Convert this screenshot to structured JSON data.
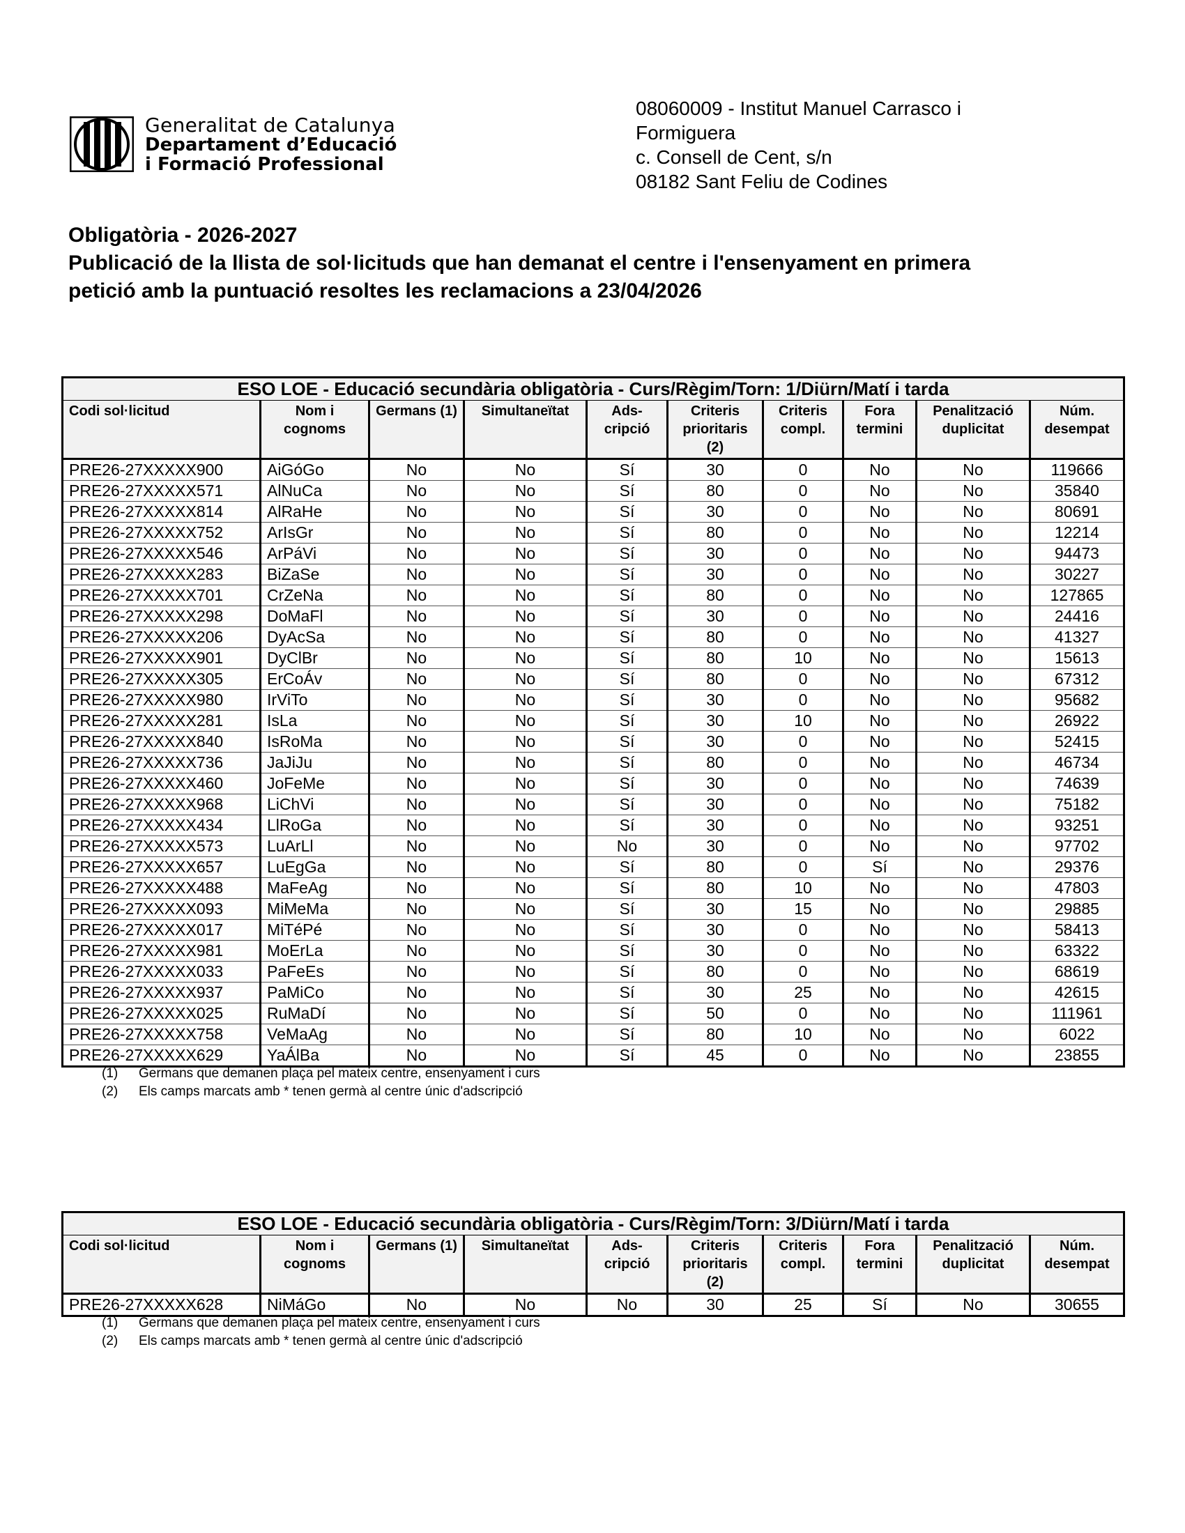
{
  "logo": {
    "line1": "Generalitat de Catalunya",
    "line2": "Departament d’Educació",
    "line3": "i Formació Professional"
  },
  "address": {
    "line1": "08060009 - Institut Manuel Carrasco i",
    "line2": "Formiguera",
    "line3": "c. Consell de Cent, s/n",
    "line4": "08182 Sant Feliu de Codines"
  },
  "title": {
    "line1": "Obligatòria - 2026-2027",
    "line2": "Publicació de la llista de sol·licituds que han demanat el centre i l'ensenyament en primera",
    "line3": "petició amb la puntuació resoltes les reclamacions a 23/04/2026"
  },
  "columns": [
    "Codi sol·licitud",
    "Nom i cognoms",
    "Germans (1)",
    "Simultaneïtat",
    "Ads-cripció",
    "Criteris prioritaris (2)",
    "Criteris compl.",
    "Fora termini",
    "Penalització duplicitat",
    "Núm. desempat"
  ],
  "footnotes": [
    {
      "num": "(1)",
      "text": "Germans que demanen plaça pel mateix centre, ensenyament i curs"
    },
    {
      "num": "(2)",
      "text": "Els camps marcats amb * tenen germà al centre únic d'adscripció"
    }
  ],
  "tables": [
    {
      "caption": "ESO LOE - Educació secundària obligatòria    -  Curs/Règim/Torn:  1/Diürn/Matí i tarda",
      "rows": [
        [
          "PRE26-27XXXXX900",
          "AiGóGo",
          "No",
          "No",
          "Sí",
          "30",
          "0",
          "No",
          "No",
          "119666"
        ],
        [
          "PRE26-27XXXXX571",
          "AlNuCa",
          "No",
          "No",
          "Sí",
          "80",
          "0",
          "No",
          "No",
          "35840"
        ],
        [
          "PRE26-27XXXXX814",
          "AlRaHe",
          "No",
          "No",
          "Sí",
          "30",
          "0",
          "No",
          "No",
          "80691"
        ],
        [
          "PRE26-27XXXXX752",
          "ArIsGr",
          "No",
          "No",
          "Sí",
          "80",
          "0",
          "No",
          "No",
          "12214"
        ],
        [
          "PRE26-27XXXXX546",
          "ArPáVi",
          "No",
          "No",
          "Sí",
          "30",
          "0",
          "No",
          "No",
          "94473"
        ],
        [
          "PRE26-27XXXXX283",
          "BiZaSe",
          "No",
          "No",
          "Sí",
          "30",
          "0",
          "No",
          "No",
          "30227"
        ],
        [
          "PRE26-27XXXXX701",
          "CrZeNa",
          "No",
          "No",
          "Sí",
          "80",
          "0",
          "No",
          "No",
          "127865"
        ],
        [
          "PRE26-27XXXXX298",
          "DoMaFl",
          "No",
          "No",
          "Sí",
          "30",
          "0",
          "No",
          "No",
          "24416"
        ],
        [
          "PRE26-27XXXXX206",
          "DyAcSa",
          "No",
          "No",
          "Sí",
          "80",
          "0",
          "No",
          "No",
          "41327"
        ],
        [
          "PRE26-27XXXXX901",
          "DyClBr",
          "No",
          "No",
          "Sí",
          "80",
          "10",
          "No",
          "No",
          "15613"
        ],
        [
          "PRE26-27XXXXX305",
          "ErCoÁv",
          "No",
          "No",
          "Sí",
          "80",
          "0",
          "No",
          "No",
          "67312"
        ],
        [
          "PRE26-27XXXXX980",
          "IrViTo",
          "No",
          "No",
          "Sí",
          "30",
          "0",
          "No",
          "No",
          "95682"
        ],
        [
          "PRE26-27XXXXX281",
          "IsLa",
          "No",
          "No",
          "Sí",
          "30",
          "10",
          "No",
          "No",
          "26922"
        ],
        [
          "PRE26-27XXXXX840",
          "IsRoMa",
          "No",
          "No",
          "Sí",
          "30",
          "0",
          "No",
          "No",
          "52415"
        ],
        [
          "PRE26-27XXXXX736",
          "JaJiJu",
          "No",
          "No",
          "Sí",
          "80",
          "0",
          "No",
          "No",
          "46734"
        ],
        [
          "PRE26-27XXXXX460",
          "JoFeMe",
          "No",
          "No",
          "Sí",
          "30",
          "0",
          "No",
          "No",
          "74639"
        ],
        [
          "PRE26-27XXXXX968",
          "LiChVi",
          "No",
          "No",
          "Sí",
          "30",
          "0",
          "No",
          "No",
          "75182"
        ],
        [
          "PRE26-27XXXXX434",
          "LlRoGa",
          "No",
          "No",
          "Sí",
          "30",
          "0",
          "No",
          "No",
          "93251"
        ],
        [
          "PRE26-27XXXXX573",
          "LuArLl",
          "No",
          "No",
          "No",
          "30",
          "0",
          "No",
          "No",
          "97702"
        ],
        [
          "PRE26-27XXXXX657",
          "LuEgGa",
          "No",
          "No",
          "Sí",
          "80",
          "0",
          "Sí",
          "No",
          "29376"
        ],
        [
          "PRE26-27XXXXX488",
          "MaFeAg",
          "No",
          "No",
          "Sí",
          "80",
          "10",
          "No",
          "No",
          "47803"
        ],
        [
          "PRE26-27XXXXX093",
          "MiMeMa",
          "No",
          "No",
          "Sí",
          "30",
          "15",
          "No",
          "No",
          "29885"
        ],
        [
          "PRE26-27XXXXX017",
          "MiTéPé",
          "No",
          "No",
          "Sí",
          "30",
          "0",
          "No",
          "No",
          "58413"
        ],
        [
          "PRE26-27XXXXX981",
          "MoErLa",
          "No",
          "No",
          "Sí",
          "30",
          "0",
          "No",
          "No",
          "63322"
        ],
        [
          "PRE26-27XXXXX033",
          "PaFeEs",
          "No",
          "No",
          "Sí",
          "80",
          "0",
          "No",
          "No",
          "68619"
        ],
        [
          "PRE26-27XXXXX937",
          "PaMiCo",
          "No",
          "No",
          "Sí",
          "30",
          "25",
          "No",
          "No",
          "42615"
        ],
        [
          "PRE26-27XXXXX025",
          "RuMaDí",
          "No",
          "No",
          "Sí",
          "50",
          "0",
          "No",
          "No",
          "111961"
        ],
        [
          "PRE26-27XXXXX758",
          "VeMaAg",
          "No",
          "No",
          "Sí",
          "80",
          "10",
          "No",
          "No",
          "6022"
        ],
        [
          "PRE26-27XXXXX629",
          "YaÁlBa",
          "No",
          "No",
          "Sí",
          "45",
          "0",
          "No",
          "No",
          "23855"
        ]
      ]
    },
    {
      "caption": "ESO LOE - Educació secundària obligatòria    -  Curs/Règim/Torn:  3/Diürn/Matí i tarda",
      "rows": [
        [
          "PRE26-27XXXXX628",
          "NiMáGo",
          "No",
          "No",
          "No",
          "30",
          "25",
          "Sí",
          "No",
          "30655"
        ]
      ]
    }
  ]
}
